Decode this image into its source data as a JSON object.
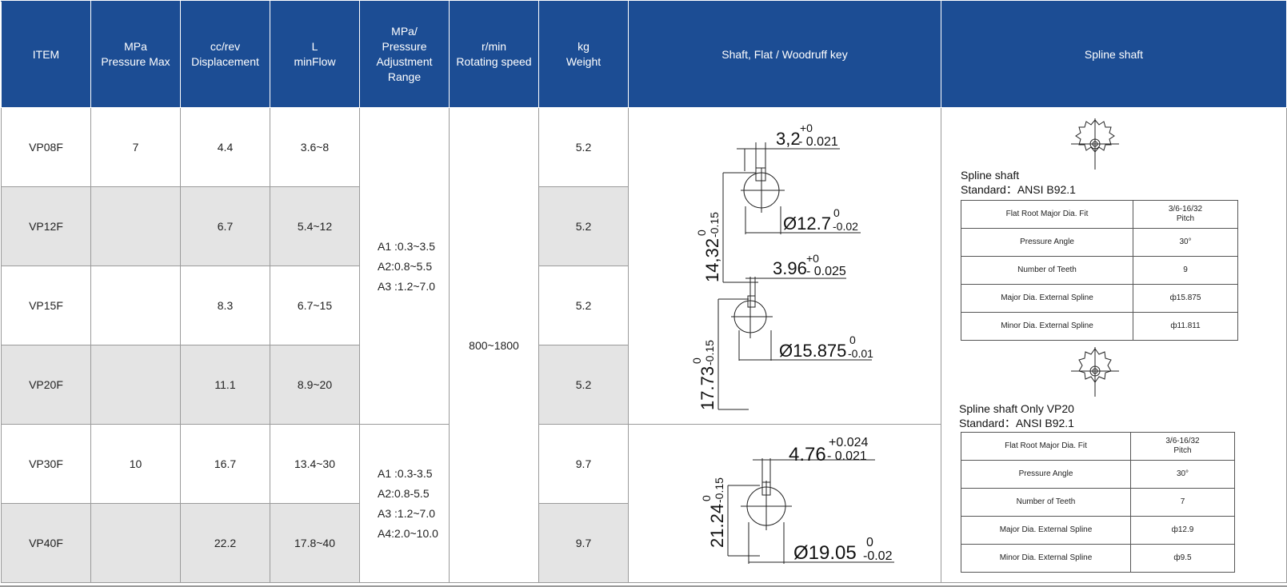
{
  "headers": {
    "item": [
      "ITEM"
    ],
    "pressure_max": [
      "MPa",
      "Pressure Max"
    ],
    "displacement": [
      "cc/rev",
      "Displacement"
    ],
    "flow": [
      "L",
      "minFlow"
    ],
    "adjustment": [
      "MPa/",
      "Pressure",
      "Adjustment",
      "Range"
    ],
    "speed": [
      "r/min",
      "Rotating speed"
    ],
    "weight": [
      "kg",
      "Weight"
    ],
    "shaft_key": [
      "Shaft, Flat / Woodruff key"
    ],
    "spline": [
      "Spline shaft"
    ]
  },
  "rows": [
    {
      "item": "VP08F",
      "pressure_max": "7",
      "displacement": "4.4",
      "flow": "3.6~8",
      "weight": "5.2"
    },
    {
      "item": "VP12F",
      "pressure_max": "",
      "displacement": "6.7",
      "flow": "5.4~12",
      "weight": "5.2"
    },
    {
      "item": "VP15F",
      "pressure_max": "",
      "displacement": "8.3",
      "flow": "6.7~15",
      "weight": "5.2"
    },
    {
      "item": "VP20F",
      "pressure_max": "",
      "displacement": "11.1",
      "flow": "8.9~20",
      "weight": "5.2"
    },
    {
      "item": "VP30F",
      "pressure_max": "10",
      "displacement": "16.7",
      "flow": "13.4~30",
      "weight": "9.7"
    },
    {
      "item": "VP40F",
      "pressure_max": "",
      "displacement": "22.2",
      "flow": "17.8~40",
      "weight": "9.7"
    }
  ],
  "adjustment_group_1": [
    "A1 :0.3~3.5",
    "A2:0.8~5.5",
    "A3 :1.2~7.0"
  ],
  "adjustment_group_2": [
    "A1 :0.3-3.5",
    "A2:0.8-5.5",
    "A3 :1.2~7.0",
    "A4:2.0~10.0"
  ],
  "rotating_speed": "800~1800",
  "shaft_drawings": {
    "d1": {
      "key_width": "3,2",
      "key_tol_upper": "+0",
      "key_tol_lower": "- 0.021",
      "height": "14,32",
      "height_tol_upper": "0",
      "height_tol_lower": "-0.15",
      "dia": "Ø12.7",
      "dia_tol_upper": "0",
      "dia_tol_lower": "-0.02"
    },
    "d2": {
      "key_width": "3.96",
      "key_tol_upper": "+0",
      "key_tol_lower": "- 0.025",
      "height": "17.73",
      "height_tol_upper": "0",
      "height_tol_lower": "-0.15",
      "dia": "Ø15.875",
      "dia_tol_upper": "0",
      "dia_tol_lower": "-0.01"
    },
    "d3": {
      "key_width": "4.76",
      "key_tol_upper": "+0.024",
      "key_tol_lower": "- 0.021",
      "height": "21.24",
      "height_tol_upper": "0",
      "height_tol_lower": "-0.15",
      "dia": "Ø19.05",
      "dia_tol_upper": "0",
      "dia_tol_lower": "-0.02"
    }
  },
  "spline_1": {
    "title": "Spline shaft",
    "standard": "Standard：ANSI B92.1",
    "rows": [
      {
        "label": "Flat Root Major Dia. Fit",
        "value": "3/6-16/32",
        "value2": "Pitch"
      },
      {
        "label": "Pressure Angle",
        "value": "30°",
        "value2": ""
      },
      {
        "label": "Number of Teeth",
        "value": "9",
        "value2": ""
      },
      {
        "label": "Major Dia. External Spline",
        "value": "ф15.875",
        "value2": ""
      },
      {
        "label": "Minor Dia. External Spline",
        "value": "ф11.811",
        "value2": ""
      }
    ]
  },
  "spline_2": {
    "title": "Spline shaft  Only VP20",
    "standard": "Standard：ANSI B92.1",
    "rows": [
      {
        "label": "Flat Root Major Dia. Fit",
        "value": "3/6-16/32",
        "value2": "Pitch"
      },
      {
        "label": "Pressure Angle",
        "value": "30°",
        "value2": ""
      },
      {
        "label": "Number of Teeth",
        "value": "7",
        "value2": ""
      },
      {
        "label": "Major Dia. External Spline",
        "value": "ф12.9",
        "value2": ""
      },
      {
        "label": "Minor Dia. External Spline",
        "value": "ф9.5",
        "value2": ""
      }
    ]
  },
  "colors": {
    "header_bg": "#1c4d94",
    "stripe": "#e4e4e4",
    "grid": "#9a9a9a"
  }
}
